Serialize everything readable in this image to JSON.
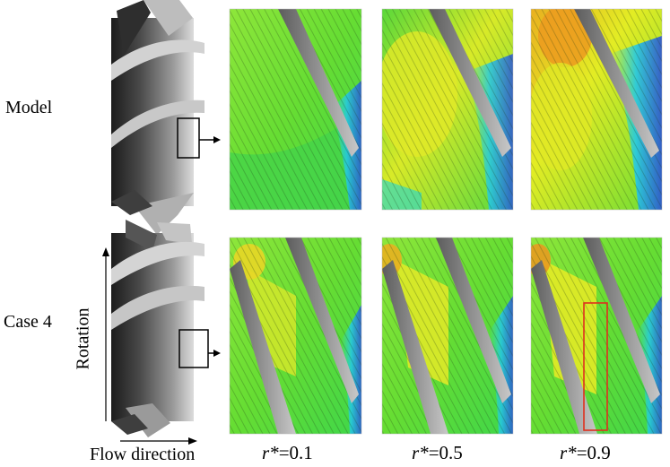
{
  "figure": {
    "rows": [
      {
        "label": "Model"
      },
      {
        "label": "Case 4"
      }
    ],
    "columns": [
      {
        "var": "r*",
        "value": "=0.1"
      },
      {
        "var": "r*",
        "value": "=0.5"
      },
      {
        "var": "r*",
        "value": "=0.9"
      }
    ],
    "axes": {
      "vertical_label": "Rotation",
      "horizontal_label": "Flow direction"
    },
    "colors": {
      "blade_dark": "#3a3a3a",
      "blade_light": "#d8d8d8",
      "field_green": "#55dd33",
      "field_yellow": "#e6ee22",
      "field_orange": "#f0a020",
      "field_cyan": "#22dddd",
      "field_blue": "#2a5fd8",
      "vane_gray": "#9a9a9a",
      "highlight_box": "#e0301e"
    }
  }
}
